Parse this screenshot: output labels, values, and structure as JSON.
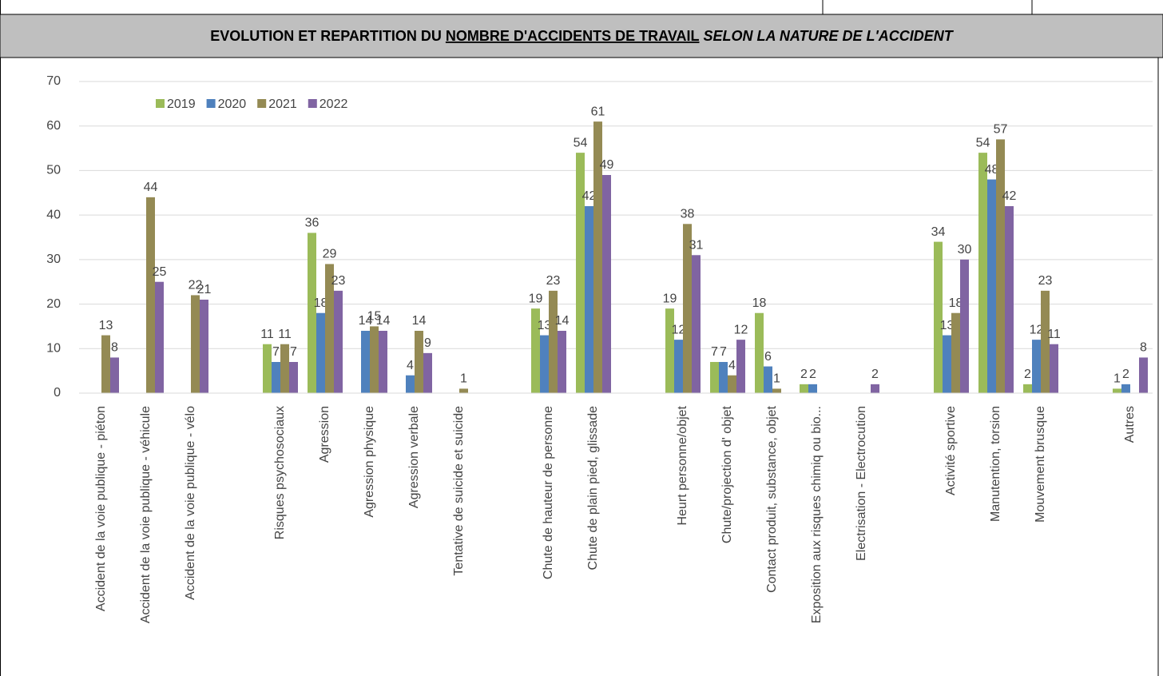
{
  "chart_data": {
    "type": "bar",
    "title_parts": [
      "EVOLUTION ET REPARTITION DU ",
      "NOMBRE D'ACCIDENTS DE TRAVAIL",
      " SELON LA NATURE DE L'ACCIDENT"
    ],
    "categories": [
      "Accident de la voie publique - piéton",
      "Accident de la voie publique - véhicule",
      "Accident de la voie publique - vélo",
      null,
      "Risques psychosociaux",
      "Agression",
      "Agression physique",
      "Agression verbale",
      "Tentative de suicide et suicide",
      null,
      "Chute de hauteur de personne",
      "Chute de plain pied, glissade",
      null,
      "Heurt personne/objet",
      "Chute/projection d' objet",
      "Contact produit, substance, objet",
      "Exposition aux risques chimiq ou bio...",
      "Electrisation - Electrocution",
      null,
      "Activité sportive",
      "Manutention, torsion",
      "Mouvement brusque",
      null,
      "Autres"
    ],
    "series": [
      {
        "name": "2019",
        "color": "#9bbb59",
        "values": [
          null,
          null,
          null,
          null,
          11,
          36,
          null,
          null,
          null,
          null,
          19,
          54,
          null,
          19,
          7,
          18,
          2,
          null,
          null,
          34,
          54,
          2,
          null,
          1
        ]
      },
      {
        "name": "2020",
        "color": "#4f81bd",
        "values": [
          null,
          null,
          null,
          null,
          7,
          18,
          14,
          4,
          null,
          null,
          13,
          42,
          null,
          12,
          7,
          6,
          2,
          null,
          null,
          13,
          48,
          12,
          null,
          2
        ]
      },
      {
        "name": "2021",
        "color": "#948a54",
        "values": [
          13,
          44,
          22,
          null,
          11,
          29,
          15,
          14,
          1,
          null,
          23,
          61,
          null,
          38,
          4,
          1,
          null,
          null,
          null,
          18,
          57,
          23,
          null,
          null
        ]
      },
      {
        "name": "2022",
        "color": "#8064a2",
        "values": [
          8,
          25,
          21,
          null,
          7,
          23,
          14,
          9,
          null,
          null,
          14,
          49,
          null,
          31,
          12,
          null,
          null,
          2,
          null,
          30,
          42,
          11,
          null,
          8
        ]
      }
    ],
    "ylim": [
      0,
      70
    ],
    "yticks": [
      0,
      10,
      20,
      30,
      40,
      50,
      60,
      70
    ],
    "grid": true,
    "legend": "top-left"
  }
}
